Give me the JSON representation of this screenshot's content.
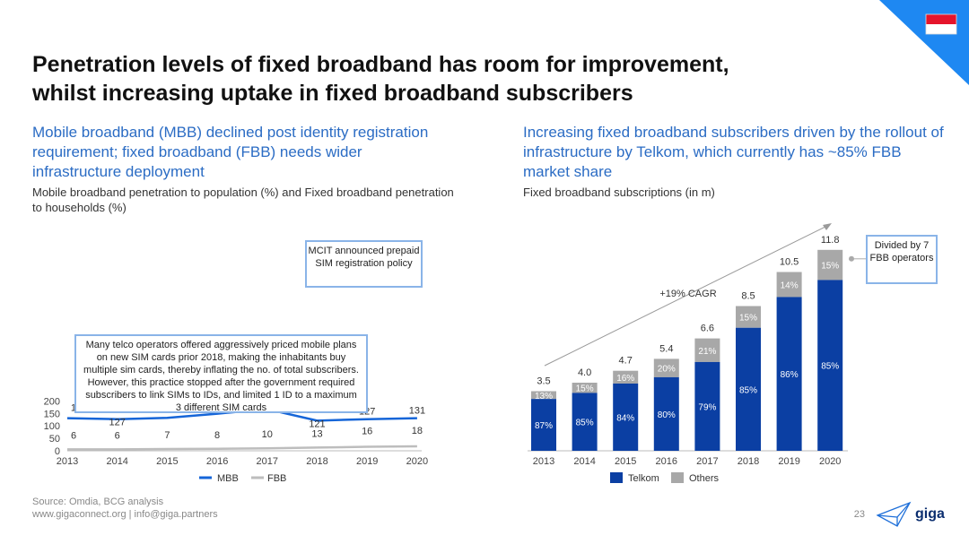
{
  "title_line1": "Penetration levels of fixed broadband has room for improvement,",
  "title_line2": "whilst increasing uptake in fixed broadband subscribers",
  "left": {
    "subtitle": "Mobile broadband (MBB) declined post identity registration requirement; fixed broadband (FBB) needs wider infrastructure deployment",
    "caption": "Mobile broadband penetration to population (%) and Fixed broadband penetration to households (%)",
    "callout_top": "MCIT announced prepaid SIM registration policy",
    "callout_body": "Many telco operators offered aggressively priced mobile plans on new SIM cards prior 2018, making the inhabitants buy multiple sim cards, thereby inflating the no. of total subscribers. However, this practice stopped after the government required subscribers to link SIMs to IDs, and limited 1 ID to a maximum 3 different SIM cards"
  },
  "right": {
    "subtitle": "Increasing fixed broadband subscribers driven by the rollout of infrastructure by Telkom, which currently has ~85% FBB market share",
    "caption": "Fixed broadband subscriptions (in m)",
    "cagr_label": "+19% CAGR",
    "callout": "Divided by 7 FBB operators"
  },
  "footer": {
    "source": "Source: Omdia, BCG analysis",
    "links": "www.gigaconnect.org  |  info@giga.partners",
    "page": "23",
    "logo_text": "giga"
  },
  "colors": {
    "mbb": "#1565d8",
    "fbb": "#bdbdbd",
    "telkom": "#0b3fa3",
    "others": "#a8a8a8",
    "accent": "#2b6cc4",
    "corner": "#1e88f2"
  },
  "chart_data": [
    {
      "type": "line",
      "x": [
        "2013",
        "2014",
        "2015",
        "2016",
        "2017",
        "2018",
        "2019",
        "2020"
      ],
      "ylim": [
        0,
        200
      ],
      "yticks": [
        0,
        50,
        100,
        150,
        200
      ],
      "series": [
        {
          "name": "MBB",
          "values": [
            131,
            127,
            132,
            149,
            167,
            121,
            127,
            131
          ]
        },
        {
          "name": "FBB",
          "values": [
            6,
            6,
            7,
            8,
            10,
            13,
            16,
            18
          ]
        }
      ],
      "legend": "bottom"
    },
    {
      "type": "bar",
      "categories": [
        "2013",
        "2014",
        "2015",
        "2016",
        "2017",
        "2018",
        "2019",
        "2020"
      ],
      "totals": [
        "3.5",
        "4.0",
        "4.7",
        "5.4",
        "6.6",
        "8.5",
        "10.5",
        "11.8"
      ],
      "series": [
        {
          "name": "Telkom",
          "share_labels": [
            "87%",
            "85%",
            "84%",
            "80%",
            "79%",
            "85%",
            "86%",
            "85%"
          ],
          "shares": [
            87,
            85,
            84,
            80,
            79,
            85,
            86,
            85
          ]
        },
        {
          "name": "Others",
          "share_labels": [
            "13%",
            "15%",
            "16%",
            "20%",
            "21%",
            "15%",
            "14%",
            "15%"
          ],
          "shares": [
            13,
            15,
            16,
            20,
            21,
            15,
            14,
            15
          ]
        }
      ],
      "legend": "bottom"
    }
  ]
}
